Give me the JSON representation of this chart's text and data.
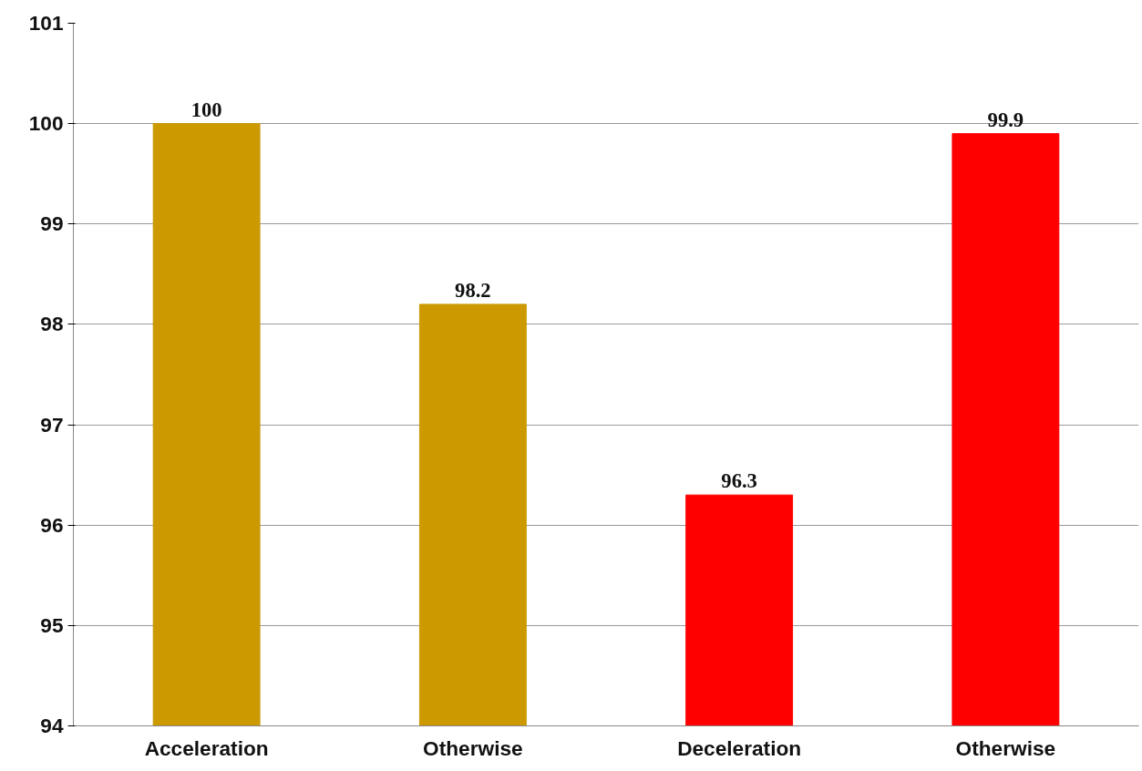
{
  "chart_data": {
    "type": "bar",
    "categories": [
      "Acceleration",
      "Otherwise",
      "Deceleration",
      "Otherwise"
    ],
    "values": [
      100,
      98.2,
      96.3,
      99.9
    ],
    "colors": [
      "#cc9900",
      "#cc9900",
      "#ff0000",
      "#ff0000"
    ],
    "ylim": [
      94,
      101
    ],
    "yticks": [
      94,
      95,
      96,
      97,
      98,
      99,
      100,
      101
    ],
    "grid": "y",
    "data_labels": true
  }
}
